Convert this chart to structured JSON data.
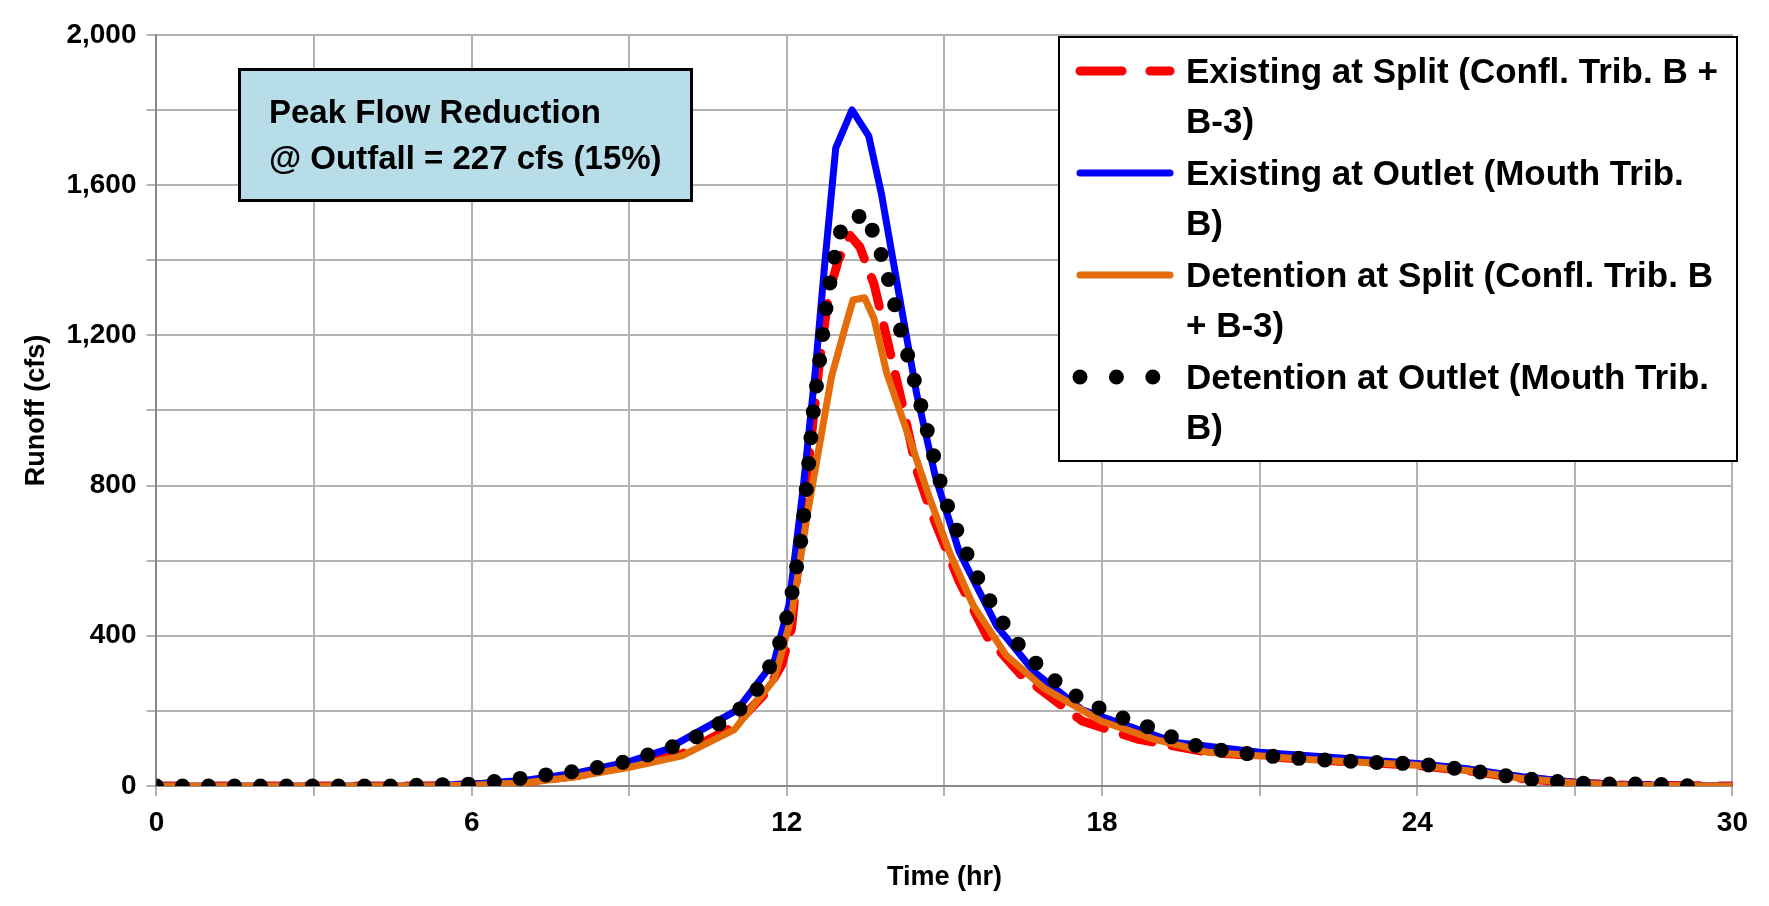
{
  "chart_data": {
    "type": "line",
    "xlabel": "Time (hr)",
    "ylabel": "Runoff (cfs)",
    "annotations": [
      "Peak Flow Reduction\n@ Outfall = 227 cfs (15%)"
    ],
    "xlim": [
      0,
      30
    ],
    "xticks": [
      0,
      {
        "value": 3,
        "label": null
      },
      6,
      {
        "value": 9,
        "label": null
      },
      12,
      {
        "value": 15,
        "label": null
      },
      18,
      {
        "value": 21,
        "label": null
      },
      24,
      {
        "value": 27,
        "label": null
      },
      30
    ],
    "ylim": [
      0,
      2000
    ],
    "yticks": [
      0,
      {
        "value": 200,
        "label": null
      },
      400,
      {
        "value": 600,
        "label": null
      },
      800,
      {
        "value": 1000,
        "label": null
      },
      {
        "value": 1200,
        "label": "1,200"
      },
      {
        "value": 1400,
        "label": null
      },
      {
        "value": 1600,
        "label": "1,600"
      },
      {
        "value": 1800,
        "label": null
      },
      {
        "value": 2000,
        "label": "2,000"
      }
    ],
    "grid": true,
    "legend": "top right",
    "marker": "none",
    "series": [
      {
        "name": "Existing at Split (Confl. Trib. B + B-3)",
        "color": "#ff0000",
        "line_style": "dashed",
        "x": [
          0,
          3,
          5,
          6,
          7,
          8,
          9,
          10,
          11,
          11.59,
          11.9,
          12.09,
          12.36,
          12.63,
          12.8,
          12.98,
          13.2,
          13.39,
          13.66,
          13.93,
          14.2,
          14.47,
          14.74,
          15.28,
          15.82,
          16.45,
          17.62,
          18.7,
          20,
          22,
          24,
          25,
          26,
          27,
          28,
          30
        ],
        "values": [
          0,
          0,
          0,
          3,
          10,
          28,
          55,
          85,
          160,
          247,
          322,
          421,
          793,
          1140,
          1313,
          1400,
          1466,
          1435,
          1336,
          1176,
          1015,
          842,
          731,
          545,
          396,
          297,
          173,
          124,
          90,
          70,
          55,
          40,
          20,
          8,
          2,
          0
        ]
      },
      {
        "name": "Existing at Outlet (Mouth Trib. B)",
        "color": "#0000ff",
        "line_style": "solid",
        "x": [
          0,
          3,
          5,
          6,
          7,
          8,
          9,
          9.7,
          11.05,
          11.76,
          12.04,
          12.31,
          12.54,
          12.72,
          12.93,
          13.24,
          13.56,
          13.8,
          14.11,
          14.47,
          14.83,
          15.28,
          16,
          16.72,
          17.62,
          19.4,
          21,
          23,
          24,
          25,
          26,
          27,
          28,
          30
        ],
        "values": [
          0,
          0,
          0,
          5,
          15,
          35,
          65,
          97,
          202,
          332,
          483,
          793,
          1103,
          1388,
          1698,
          1800,
          1730,
          1577,
          1329,
          1045,
          822,
          624,
          425,
          302,
          203,
          116,
          90,
          70,
          60,
          45,
          25,
          10,
          3,
          0
        ]
      },
      {
        "name": "Detention at Split (Confl. Trib. B + B-3)",
        "color": "#e46c0a",
        "line_style": "solid",
        "x": [
          0,
          3,
          5,
          6,
          7,
          8,
          9,
          10,
          11,
          11.76,
          12.08,
          12.4,
          12.85,
          13.12,
          13.26,
          13.48,
          13.66,
          13.9,
          14.38,
          14.74,
          15.1,
          15.55,
          16.18,
          16.9,
          17.98,
          19,
          20,
          22,
          24,
          25,
          26,
          27,
          28,
          30
        ],
        "values": [
          0,
          0,
          0,
          2,
          8,
          25,
          50,
          80,
          150,
          284,
          446,
          731,
          1090,
          1226,
          1294,
          1300,
          1244,
          1100,
          906,
          758,
          621,
          480,
          347,
          260,
          173,
          124,
          90,
          70,
          55,
          40,
          20,
          8,
          2,
          0
        ]
      },
      {
        "name": "Detention at Outlet (Mouth Trib. B)",
        "color": "#000000",
        "line_style": "dotted",
        "x": [
          0,
          0.74,
          1.49,
          2.23,
          2.98,
          3.72,
          4.47,
          5.21,
          5.96,
          6.7,
          7.44,
          8.19,
          8.93,
          9.7,
          10.42,
          11.05,
          11.53,
          11.84,
          12.04,
          12.17,
          12.29,
          12.36,
          12.43,
          12.49,
          12.58,
          12.67,
          12.76,
          12.88,
          13.05,
          13.5,
          13.77,
          13.98,
          14.14,
          14.34,
          14.53,
          14.71,
          14.89,
          15.1,
          15.39,
          15.69,
          16.06,
          16.49,
          17.03,
          17.62,
          18.31,
          19.03,
          19.59,
          20.31,
          21.06,
          21.8,
          22.55,
          23.29,
          24.04,
          24.78,
          25.53,
          26.27,
          27.02,
          27.76,
          28.5,
          29.25
        ],
        "values": [
          0,
          0,
          0,
          0,
          0,
          0,
          0,
          3,
          5,
          16,
          30,
          43,
          65,
          97,
          140,
          196,
          273,
          370,
          469,
          571,
          673,
          776,
          879,
          982,
          1083,
          1186,
          1289,
          1392,
          1492,
          1526,
          1427,
          1327,
          1226,
          1127,
          1025,
          926,
          825,
          726,
          630,
          537,
          445,
          361,
          288,
          228,
          185,
          150,
          113,
          94,
          81,
          73,
          67,
          62,
          59,
          46,
          30,
          16,
          8,
          5,
          5,
          0
        ]
      }
    ]
  }
}
